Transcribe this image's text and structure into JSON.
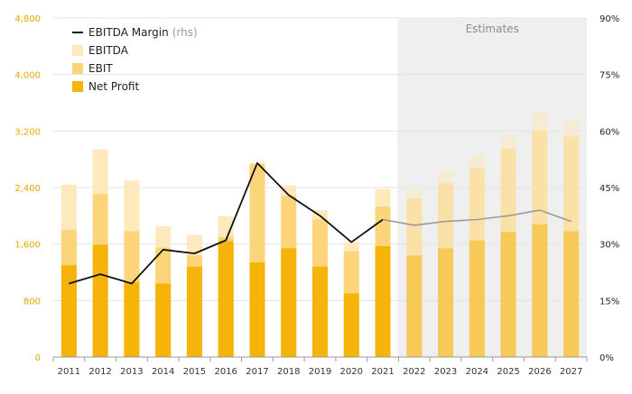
{
  "chart_data": {
    "type": "bar",
    "categories": [
      "2011",
      "2012",
      "2013",
      "2014",
      "2015",
      "2016",
      "2017",
      "2018",
      "2019",
      "2020",
      "2021",
      "2022",
      "2023",
      "2024",
      "2025",
      "2026",
      "2027"
    ],
    "estimates_label": "Estimates",
    "estimates_start": "2022",
    "left_axis": {
      "ticks": [
        0,
        800,
        1600,
        2400,
        3200,
        4000,
        4800
      ],
      "tick_labels": [
        "0",
        "800",
        "1,600",
        "2,400",
        "3,200",
        "4,000",
        "4,800"
      ],
      "ylim": [
        0,
        4800
      ]
    },
    "right_axis": {
      "ticks": [
        0,
        15,
        30,
        45,
        60,
        75,
        90
      ],
      "tick_labels": [
        "0%",
        "15%",
        "30%",
        "45%",
        "60%",
        "75%",
        "90%"
      ],
      "ylim": [
        0,
        90
      ]
    },
    "series": [
      {
        "name": "EBITDA",
        "kind": "bar",
        "color": "#fde9bb",
        "values": [
          2440,
          2940,
          2500,
          1850,
          1730,
          1990,
          2680,
          2430,
          2080,
          1630,
          2380,
          2380,
          2640,
          2850,
          3150,
          3470,
          3370
        ]
      },
      {
        "name": "EBIT",
        "kind": "bar",
        "color": "#fcd57a",
        "values": [
          1800,
          2310,
          1780,
          1550,
          1440,
          1700,
          2740,
          2280,
          1950,
          1500,
          2130,
          2250,
          2460,
          2680,
          2950,
          3200,
          3120
        ]
      },
      {
        "name": "Net Profit",
        "kind": "bar",
        "color": "#f6b40a",
        "values": [
          1300,
          1590,
          1060,
          1040,
          1280,
          1640,
          1340,
          1540,
          1280,
          900,
          1570,
          1440,
          1540,
          1650,
          1770,
          1880,
          1780
        ]
      },
      {
        "name": "EBITDA Margin",
        "unit": "(rhs)",
        "kind": "line",
        "color": "#111111",
        "color_estimates": "#9b9b9b",
        "values": [
          19.5,
          22.0,
          19.5,
          28.5,
          27.5,
          31.0,
          51.5,
          43.0,
          37.5,
          30.5,
          36.5,
          35.0,
          36.0,
          36.5,
          37.5,
          39.0,
          36.0
        ]
      }
    ],
    "legend_position": "top-left",
    "grid": true
  }
}
